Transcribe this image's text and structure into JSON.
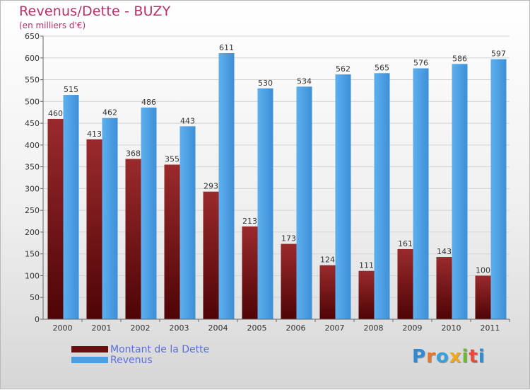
{
  "title": "Revenus/Dette - BUZY",
  "subtitle": "(en milliers d'€)",
  "logo": {
    "text": "Proxiti",
    "letter_colors": [
      "#2f8bd6",
      "#e6762a",
      "#3aa0dc",
      "#f0a81c",
      "#6cb82f",
      "#e34b3b",
      "#2f8bd6"
    ]
  },
  "chart_data": {
    "type": "bar",
    "categories": [
      "2000",
      "2001",
      "2002",
      "2003",
      "2004",
      "2005",
      "2006",
      "2007",
      "2008",
      "2009",
      "2010",
      "2011"
    ],
    "series": [
      {
        "name": "Montant de la Dette",
        "values": [
          460,
          413,
          368,
          355,
          293,
          213,
          173,
          124,
          111,
          161,
          143,
          100
        ],
        "color": "#7b1416"
      },
      {
        "name": "Revenus",
        "values": [
          515,
          462,
          486,
          443,
          611,
          530,
          534,
          562,
          565,
          576,
          586,
          597
        ],
        "color": "#4a9fe3"
      }
    ],
    "ylim": [
      0,
      650
    ],
    "yticks": [
      0,
      50,
      100,
      150,
      200,
      250,
      300,
      350,
      400,
      450,
      500,
      550,
      600,
      650
    ],
    "grid": true,
    "legend_position": "bottom-left"
  }
}
